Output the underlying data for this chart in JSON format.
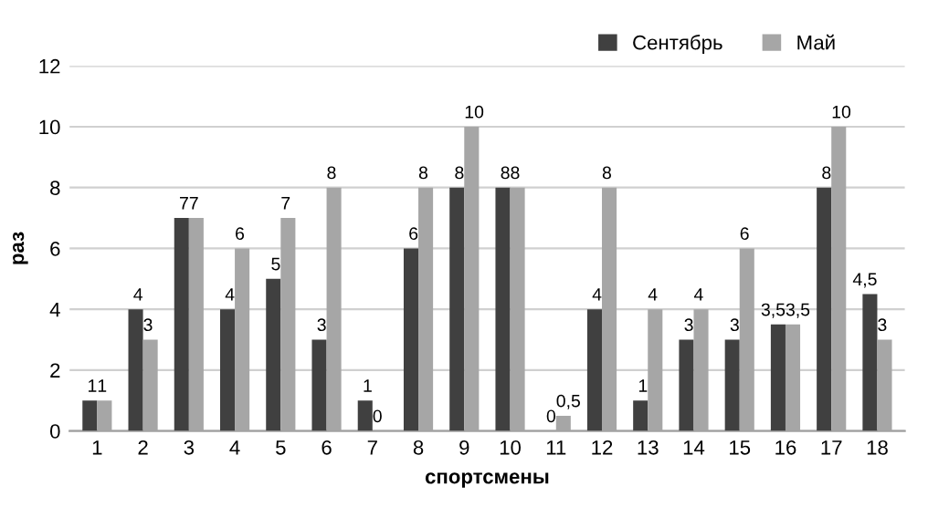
{
  "chart_data": {
    "type": "bar",
    "xlabel": "спортсмены",
    "ylabel": "раз",
    "categories": [
      "1",
      "2",
      "3",
      "4",
      "5",
      "6",
      "7",
      "8",
      "9",
      "10",
      "11",
      "12",
      "13",
      "14",
      "15",
      "16",
      "17",
      "18"
    ],
    "series": [
      {
        "name": "Сентябрь",
        "color": "#404040",
        "values": [
          1,
          4,
          7,
          4,
          5,
          3,
          1,
          6,
          8,
          8,
          0,
          4,
          1,
          3,
          3,
          3.5,
          8,
          4.5
        ],
        "value_labels": [
          "1",
          "4",
          "7",
          "4",
          "5",
          "3",
          "1",
          "6",
          "8",
          "8",
          "0",
          "4",
          "1",
          "3",
          "3",
          "3,5",
          "8",
          "4,5"
        ]
      },
      {
        "name": "Май",
        "color": "#a6a6a6",
        "values": [
          1,
          3,
          7,
          6,
          7,
          8,
          0,
          8,
          10,
          8,
          0.5,
          8,
          4,
          4,
          6,
          3.5,
          10,
          3
        ],
        "value_labels": [
          "1",
          "3",
          "7",
          "6",
          "7",
          "8",
          "0",
          "8",
          "10",
          "8",
          "0,5",
          "8",
          "4",
          "4",
          "6",
          "3,5",
          "10",
          "3"
        ]
      }
    ],
    "ylim": [
      0,
      12
    ],
    "yticks": [
      0,
      2,
      4,
      6,
      8,
      10,
      12
    ],
    "grid": "y",
    "legend": "top right"
  }
}
